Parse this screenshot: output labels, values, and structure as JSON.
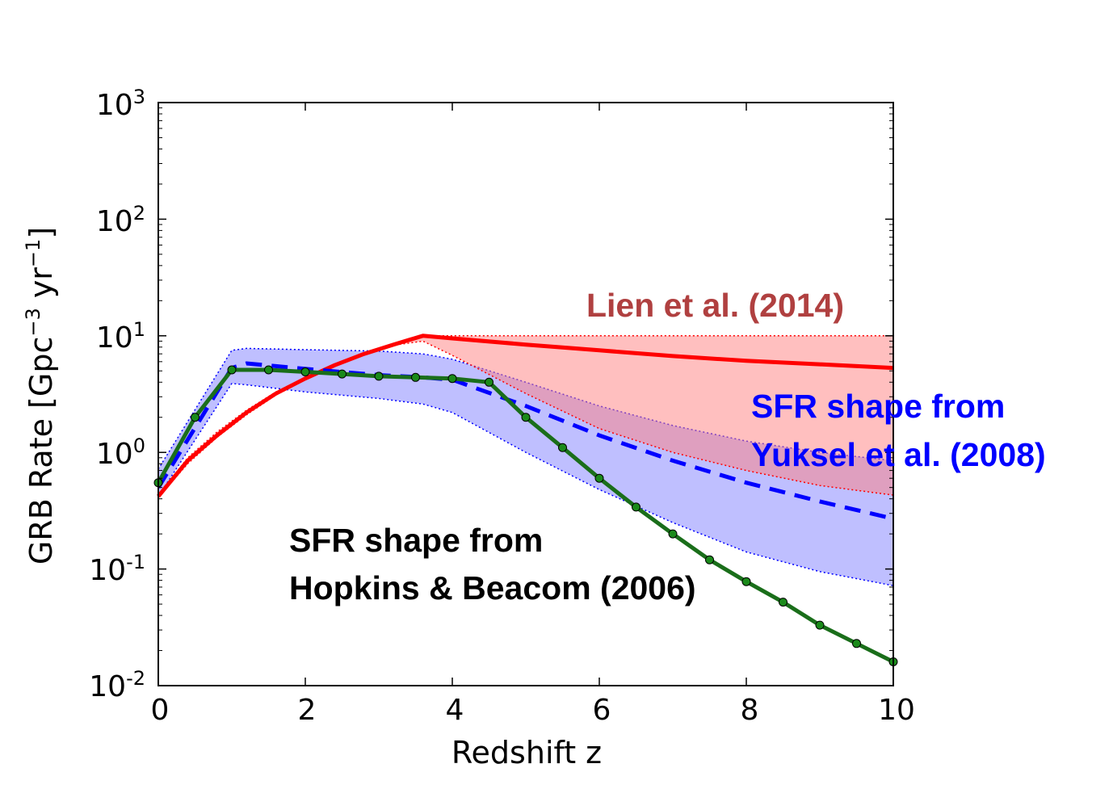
{
  "chart_data": {
    "type": "line",
    "xlabel": "Redshift z",
    "ylabel_main": "GRB Rate [Gpc",
    "ylabel_sup1": "−3",
    "ylabel_mid": " yr",
    "ylabel_sup2": "−1",
    "ylabel_end": "]",
    "xlim": [
      0,
      10
    ],
    "ylim": [
      0.01,
      1000
    ],
    "y_scale": "log",
    "grid": false,
    "x_ticks": [
      {
        "value": 0,
        "label": "0"
      },
      {
        "value": 2,
        "label": "2"
      },
      {
        "value": 4,
        "label": "4"
      },
      {
        "value": 6,
        "label": "6"
      },
      {
        "value": 8,
        "label": "8"
      },
      {
        "value": 10,
        "label": "10"
      }
    ],
    "y_ticks": [
      {
        "value": 0.01,
        "base": "10",
        "exp": "-2"
      },
      {
        "value": 0.1,
        "base": "10",
        "exp": "-1"
      },
      {
        "value": 1,
        "base": "10",
        "exp": "0"
      },
      {
        "value": 10,
        "base": "10",
        "exp": "1"
      },
      {
        "value": 100,
        "base": "10",
        "exp": "2"
      },
      {
        "value": 1000,
        "base": "10",
        "exp": "3"
      }
    ],
    "annotations": [
      {
        "text": "Lien et al. (2014)",
        "color": "#b04040"
      },
      {
        "text": "SFR shape from",
        "color": "#0000ff"
      },
      {
        "text": "Yuksel et al. (2008)",
        "color": "#0000ff"
      },
      {
        "text": "SFR shape from",
        "color": "#000000"
      },
      {
        "text": "Hopkins & Beacom (2006)",
        "color": "#000000"
      }
    ],
    "series": [
      {
        "color": "#ff0000",
        "style": "solid",
        "x": [
          0,
          0.4,
          0.8,
          1.2,
          1.6,
          2.0,
          2.4,
          2.8,
          3.2,
          3.6,
          4,
          5,
          6,
          7,
          8,
          9,
          10
        ],
        "y": [
          0.42,
          0.85,
          1.4,
          2.2,
          3.2,
          4.3,
          5.6,
          7.0,
          8.4,
          10.0,
          9.5,
          8.4,
          7.5,
          6.7,
          6.1,
          5.7,
          5.3
        ],
        "band_upper": [
          0.43,
          0.9,
          1.5,
          2.3,
          3.3,
          4.4,
          5.7,
          7.1,
          8.5,
          10.0,
          10.0,
          10.0,
          10.0,
          10.0,
          10.0,
          10.0,
          10.0
        ],
        "band_lower": [
          0.41,
          0.8,
          1.35,
          2.1,
          3.1,
          4.2,
          5.5,
          6.9,
          8.3,
          9.0,
          6.8,
          3.2,
          1.6,
          1.0,
          0.7,
          0.52,
          0.43
        ],
        "band_color": "#ff8080"
      },
      {
        "color": "#0000ff",
        "style": "dashed",
        "x": [
          0,
          1.0,
          1.2,
          2,
          3,
          3.6,
          4,
          5,
          6,
          7,
          8,
          9,
          10
        ],
        "y": [
          0.5,
          5.3,
          5.8,
          5.2,
          4.6,
          4.4,
          4.2,
          2.5,
          1.4,
          0.85,
          0.55,
          0.38,
          0.27
        ],
        "band_upper": [
          0.72,
          7.5,
          7.8,
          7.6,
          7.4,
          7.0,
          6.3,
          4.0,
          2.5,
          1.7,
          1.25,
          1.0,
          0.85
        ],
        "band_lower": [
          0.42,
          3.9,
          3.8,
          3.3,
          2.9,
          2.6,
          2.2,
          1.0,
          0.48,
          0.25,
          0.14,
          0.095,
          0.072
        ],
        "band_color": "#8080ff"
      },
      {
        "color": "#1a6e1a",
        "style": "solid-markers",
        "marker_color": "#1a8a1a",
        "x": [
          0,
          0.5,
          1.0,
          1.5,
          2.0,
          2.5,
          3.0,
          3.5,
          4.0,
          4.5,
          5.0,
          5.5,
          6.0,
          6.5,
          7.0,
          7.5,
          8.0,
          8.5,
          9.0,
          9.5,
          10.0
        ],
        "y": [
          0.55,
          2.0,
          5.1,
          5.1,
          4.9,
          4.7,
          4.5,
          4.4,
          4.3,
          4.0,
          2.0,
          1.1,
          0.6,
          0.34,
          0.2,
          0.12,
          0.078,
          0.052,
          0.033,
          0.023,
          0.016
        ]
      }
    ]
  }
}
